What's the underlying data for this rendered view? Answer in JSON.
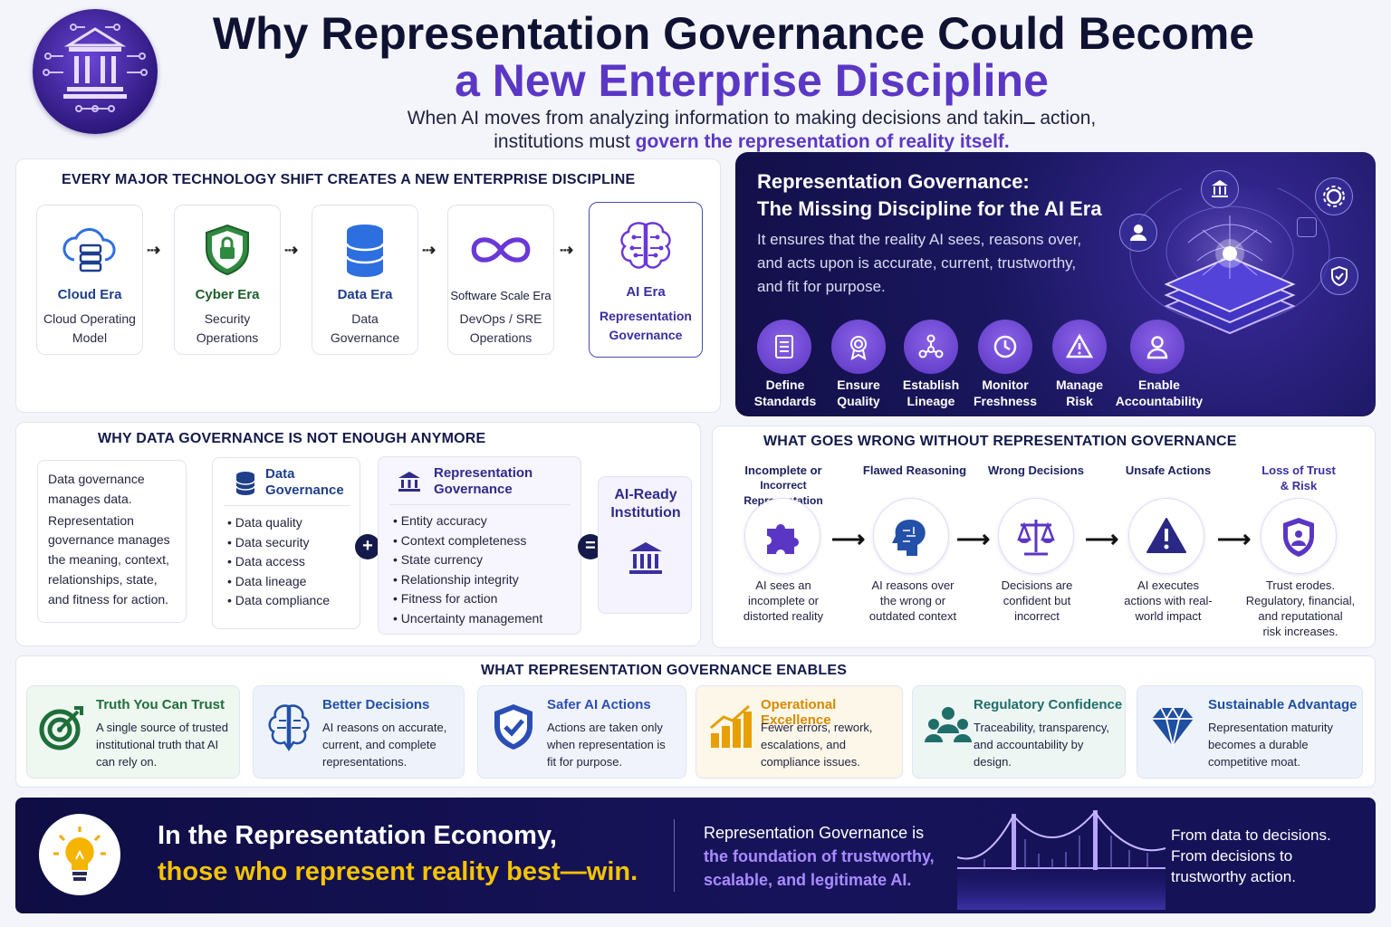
{
  "header": {
    "title_line1": "Why Representation Governance Could Become",
    "title_line2": "a New Enterprise Discipline",
    "subtitle_line1": "When AI moves from analyzing information to making decisions and takinــ action,",
    "subtitle_line2_plain": "institutions must ",
    "subtitle_line2_highlight": "govern the representation of reality itself."
  },
  "eras": {
    "title": "EVERY MAJOR TECHNOLOGY SHIFT CREATES A NEW ENTERPRISE DISCIPLINE",
    "items": [
      {
        "name": "Cloud Era",
        "line1": "Cloud Operating",
        "line2": "Model",
        "icon": "cloud-server-icon"
      },
      {
        "name": "Cyber Era",
        "line1": "Security",
        "line2": "Operations",
        "icon": "shield-lock-icon"
      },
      {
        "name": "Data Era",
        "line1": "Data",
        "line2": "Governance",
        "icon": "database-icon"
      },
      {
        "name": "Software Scale Era",
        "line1": "DevOps / SRE",
        "line2": "Operations",
        "icon": "infinity-icon"
      },
      {
        "name": "AI Era",
        "line1": "Representation",
        "line2": "Governance",
        "icon": "brain-circuit-icon"
      }
    ]
  },
  "panel": {
    "title_line1": "Representation Governance:",
    "title_line2": "The Missing Discipline for the AI Era",
    "body_line1": "It ensures that the reality AI sees, reasons over,",
    "body_line2": "and acts upon is accurate, current, trustworthy,",
    "body_line3": "and fit for purpose.",
    "pillars": [
      {
        "line1": "Define",
        "line2": "Standards",
        "icon": "document-list-icon"
      },
      {
        "line1": "Ensure",
        "line2": "Quality",
        "icon": "award-icon"
      },
      {
        "line1": "Establish",
        "line2": "Lineage",
        "icon": "network-icon"
      },
      {
        "line1": "Monitor",
        "line2": "Freshness",
        "icon": "clock-icon"
      },
      {
        "line1": "Manage",
        "line2": "Risk",
        "icon": "warning-icon"
      },
      {
        "line1": "Enable",
        "line2": "Accountability",
        "icon": "person-icon"
      }
    ]
  },
  "why": {
    "title": "WHY DATA GOVERNANCE IS NOT ENOUGH ANYMORE",
    "intro": [
      "Data governance",
      "manages data.",
      "Representation",
      "governance manages",
      "the meaning, context,",
      "relationships, state,",
      "and fitness for action."
    ],
    "data_gov": {
      "title1": "Data",
      "title2": "Governance",
      "items": [
        "Data quality",
        "Data security",
        "Data access",
        "Data lineage",
        "Data compliance"
      ]
    },
    "plus": "+",
    "rep_gov": {
      "title1": "Representation",
      "title2": "Governance",
      "items": [
        "Entity accuracy",
        "Context completeness",
        "State currency",
        "Relationship integrity",
        "Fitness for action",
        "Uncertainty management"
      ]
    },
    "equals": "=",
    "result": {
      "line1": "AI-Ready",
      "line2": "Institution"
    }
  },
  "wrong": {
    "title": "WHAT GOES WRONG WITHOUT REPRESENTATION GOVERNANCE",
    "steps": [
      {
        "t1": "Incomplete or",
        "t2": "Incorrect Representation",
        "d": [
          "AI sees an",
          "incomplete or",
          "distorted reality"
        ],
        "icon": "puzzle-icon"
      },
      {
        "t1": "Flawed Reasoning",
        "t2": "",
        "d": [
          "AI reasons over",
          "the wrong or",
          "outdated context"
        ],
        "icon": "head-brain-icon"
      },
      {
        "t1": "Wrong Decisions",
        "t2": "",
        "d": [
          "Decisions are",
          "confident but",
          "incorrect"
        ],
        "icon": "scales-icon"
      },
      {
        "t1": "Unsafe Actions",
        "t2": "",
        "d": [
          "AI executes",
          "actions with real-",
          "world impact"
        ],
        "icon": "warning-icon"
      },
      {
        "t1": "Loss of Trust",
        "t2": "& Risk",
        "d": [
          "Trust erodes.",
          "Regulatory, financial,",
          "and reputational",
          "risk increases."
        ],
        "icon": "shield-person-icon"
      }
    ]
  },
  "enables": {
    "title": "WHAT REPRESENTATION GOVERNANCE ENABLES",
    "items": [
      {
        "title": "Truth You Can Trust",
        "d": [
          "A single source of trusted",
          "institutional truth that AI",
          "can rely on."
        ],
        "color": "#1f7a3a",
        "bg": "#eef7f0",
        "icon": "target-icon"
      },
      {
        "title": "Better Decisions",
        "d": [
          "AI reasons on accurate,",
          "current, and complete",
          "representations."
        ],
        "color": "#2350a8",
        "bg": "#eef3fb",
        "icon": "brain-icon"
      },
      {
        "title": "Safer AI Actions",
        "d": [
          "Actions are taken only",
          "when representation is",
          "fit for purpose."
        ],
        "color": "#2a4eb5",
        "bg": "#f1f3fc",
        "icon": "shield-check-icon"
      },
      {
        "title": "Operational Excellence",
        "d": [
          "Fewer errors, rework,",
          "escalations, and",
          "compliance issues."
        ],
        "color": "#d78a00",
        "bg": "#fdf7ea",
        "icon": "bar-chart-icon"
      },
      {
        "title": "Regulatory Confidence",
        "d": [
          "Traceability, transparency,",
          "and accountability by",
          "design."
        ],
        "color": "#1f6e6a",
        "bg": "#eef6f4",
        "icon": "people-icon"
      },
      {
        "title": "Sustainable Advantage",
        "d": [
          "Representation maturity",
          "becomes a durable",
          "competitive moat."
        ],
        "color": "#1f4fa0",
        "bg": "#eef3fb",
        "icon": "diamond-icon"
      }
    ]
  },
  "footer": {
    "line1": "In the Representation Economy,",
    "line2": "those who represent reality best—win.",
    "mid1": "Representation Governance is",
    "mid2": "the foundation of trustworthy,",
    "mid3": "scalable, and legitimate AI.",
    "right1": "From data to decisions.",
    "right2": "From decisions to",
    "right3": "trustworthy action."
  }
}
